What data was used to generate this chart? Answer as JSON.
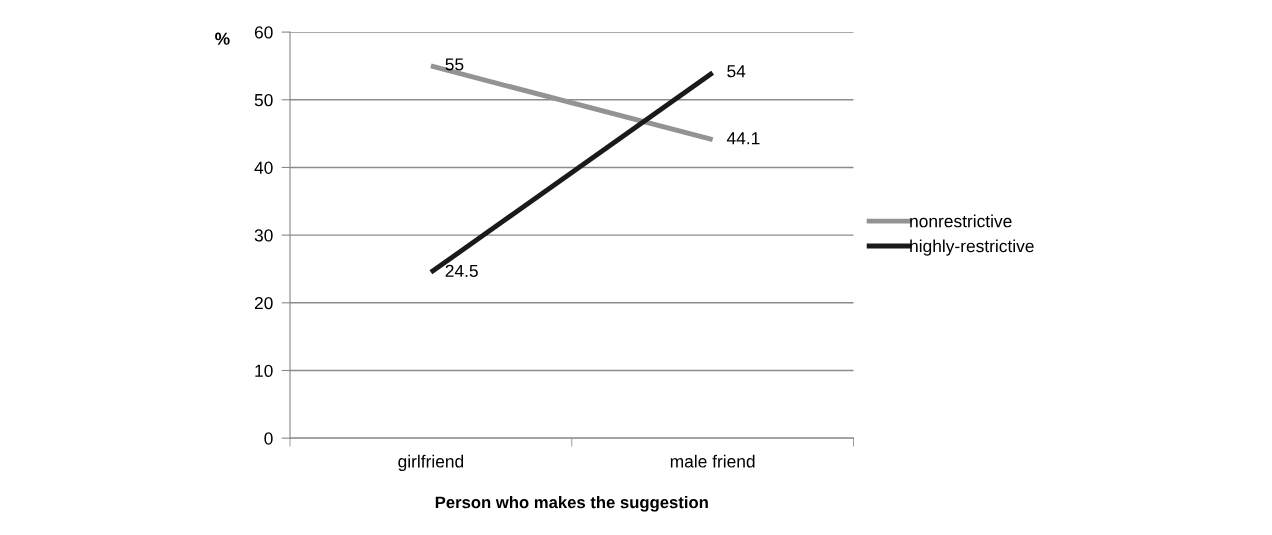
{
  "chart_data": {
    "type": "line",
    "ylabel": "%",
    "xlabel": "Person who makes the suggestion",
    "categories": [
      "girlfriend",
      "male friend"
    ],
    "series": [
      {
        "name": "nonrestrictive",
        "color": "#939393",
        "values": [
          55,
          44.1
        ]
      },
      {
        "name": "highly-restrictive",
        "color": "#1a1a1a",
        "values": [
          24.5,
          54
        ]
      }
    ],
    "ylim": [
      0,
      60
    ],
    "yticks": [
      0,
      10,
      20,
      30,
      40,
      50,
      60
    ],
    "grid": "y",
    "legend": "right",
    "data_labels": true,
    "marker": "none",
    "line_style": "solid"
  }
}
